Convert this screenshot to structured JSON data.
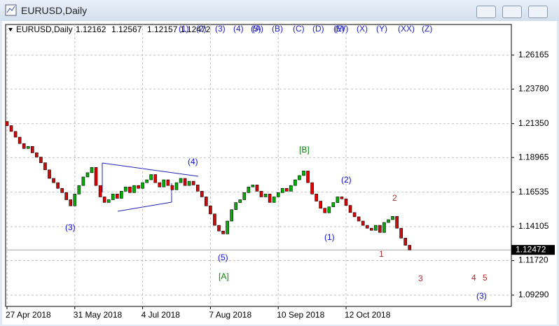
{
  "window_title": "EURUSD,Daily",
  "chart_data": {
    "type": "candlestick",
    "symbol": "EURUSD,Daily",
    "info_values": [
      1.12162,
      1.12567,
      1.12157,
      1.12472
    ],
    "categories": [
      "27 Apr 2018",
      null,
      null,
      null,
      null,
      null,
      null,
      null,
      null,
      null,
      null,
      null,
      null,
      null,
      null,
      null,
      "31 May 2018",
      null,
      null,
      null,
      null,
      null,
      null,
      null,
      null,
      null,
      null,
      null,
      null,
      null,
      null,
      null,
      "4 Jul 2018",
      null,
      null,
      null,
      null,
      null,
      null,
      null,
      null,
      null,
      null,
      null,
      null,
      null,
      null,
      null,
      "7 Aug 2018",
      null,
      null,
      null,
      null,
      null,
      null,
      null,
      null,
      null,
      null,
      null,
      null,
      null,
      null,
      null,
      "10 Sep 2018",
      null,
      null,
      null,
      null,
      null,
      null,
      null,
      null,
      null,
      null,
      null,
      null,
      null,
      null,
      null,
      "12 Oct 2018",
      null,
      null,
      null,
      null,
      null,
      null,
      null,
      null,
      null,
      null,
      null,
      null,
      null,
      null,
      null
    ],
    "open": [
      1.215,
      1.2121,
      1.208,
      1.204,
      1.1995,
      1.196,
      1.1975,
      1.193,
      1.19,
      1.186,
      1.181,
      1.175,
      1.172,
      1.168,
      1.165,
      1.16,
      1.1557,
      1.164,
      1.17,
      1.176,
      1.179,
      1.1827,
      1.17,
      1.162,
      1.1581,
      1.16,
      1.164,
      1.161,
      1.166,
      1.169,
      1.165,
      1.17,
      1.168,
      1.172,
      1.174,
      1.1777,
      1.172,
      1.169,
      1.174,
      1.17,
      1.167,
      1.172,
      1.175,
      1.17,
      1.173,
      1.1704,
      1.166,
      1.162,
      1.1557,
      1.15,
      1.142,
      1.138,
      1.136,
      1.145,
      1.153,
      1.158,
      1.16,
      1.165,
      1.169,
      1.1704,
      1.166,
      1.162,
      1.164,
      1.1581,
      1.162,
      1.165,
      1.168,
      1.166,
      1.17,
      1.174,
      1.177,
      1.1802,
      1.172,
      1.164,
      1.159,
      1.154,
      1.1508,
      1.155,
      1.158,
      1.162,
      1.1606,
      1.156,
      1.151,
      1.148,
      1.145,
      1.142,
      1.14,
      1.1385,
      1.142,
      1.137,
      1.144,
      1.146,
      1.1483,
      1.14,
      1.133,
      1.128
    ],
    "close": [
      1.2121,
      1.208,
      1.204,
      1.1995,
      1.196,
      1.1975,
      1.193,
      1.19,
      1.186,
      1.181,
      1.175,
      1.172,
      1.168,
      1.165,
      1.16,
      1.1557,
      1.164,
      1.17,
      1.176,
      1.179,
      1.1827,
      1.17,
      1.162,
      1.1581,
      1.16,
      1.164,
      1.161,
      1.166,
      1.169,
      1.165,
      1.17,
      1.168,
      1.172,
      1.174,
      1.1777,
      1.172,
      1.169,
      1.174,
      1.17,
      1.167,
      1.172,
      1.175,
      1.17,
      1.173,
      1.1704,
      1.166,
      1.162,
      1.1557,
      1.15,
      1.142,
      1.138,
      1.136,
      1.145,
      1.153,
      1.158,
      1.16,
      1.165,
      1.169,
      1.1704,
      1.166,
      1.162,
      1.164,
      1.1581,
      1.162,
      1.165,
      1.168,
      1.166,
      1.17,
      1.174,
      1.177,
      1.1802,
      1.172,
      1.164,
      1.159,
      1.154,
      1.1508,
      1.155,
      1.158,
      1.162,
      1.1606,
      1.156,
      1.151,
      1.148,
      1.145,
      1.142,
      1.14,
      1.1385,
      1.142,
      1.137,
      1.144,
      1.146,
      1.1483,
      1.14,
      1.133,
      1.128,
      1.12472
    ],
    "up_color": "#00b000",
    "down_color": "#e00000",
    "ylim": [
      1.085,
      1.2832
    ],
    "yticks": [
      1.26165,
      {
        "value": 1.2378,
        "label": "1.23780"
      },
      {
        "value": 1.2135,
        "label": "1.21350"
      },
      1.18965,
      1.16535,
      1.14105,
      {
        "value": 1.1172,
        "label": "1.11720"
      },
      {
        "value": 1.0929,
        "label": "1.09290"
      }
    ],
    "grid": true,
    "last_price": 1.12472,
    "object_labels": [
      "(1)",
      "(2)",
      "(3)",
      "(4)",
      "(5)",
      "(A)",
      "(B)",
      "(C)",
      "(D)",
      "(E)",
      "(W)",
      "(X)",
      "(Y)",
      "(XX)",
      "(Z)"
    ],
    "annotations": [
      {
        "text": "(3)",
        "color": "#1010d0"
      },
      {
        "text": "(4)",
        "color": "#1010d0"
      },
      {
        "text": "(5)",
        "color": "#1010d0"
      },
      {
        "text": "[A]",
        "color": "#108010"
      },
      {
        "text": "[B]",
        "color": "#108010"
      },
      {
        "text": "(2)",
        "color": "#1010d0"
      },
      {
        "text": "(1)",
        "color": "#1010d0"
      },
      {
        "text": "2",
        "color": "#b03030"
      },
      {
        "text": "1",
        "color": "#b03030"
      },
      {
        "text": "3",
        "color": "#b03030"
      },
      {
        "text": "4",
        "color": "#b03030"
      },
      {
        "text": "5",
        "color": "#b03030"
      },
      {
        "text": "(3)",
        "color": "#1010d0"
      }
    ]
  }
}
